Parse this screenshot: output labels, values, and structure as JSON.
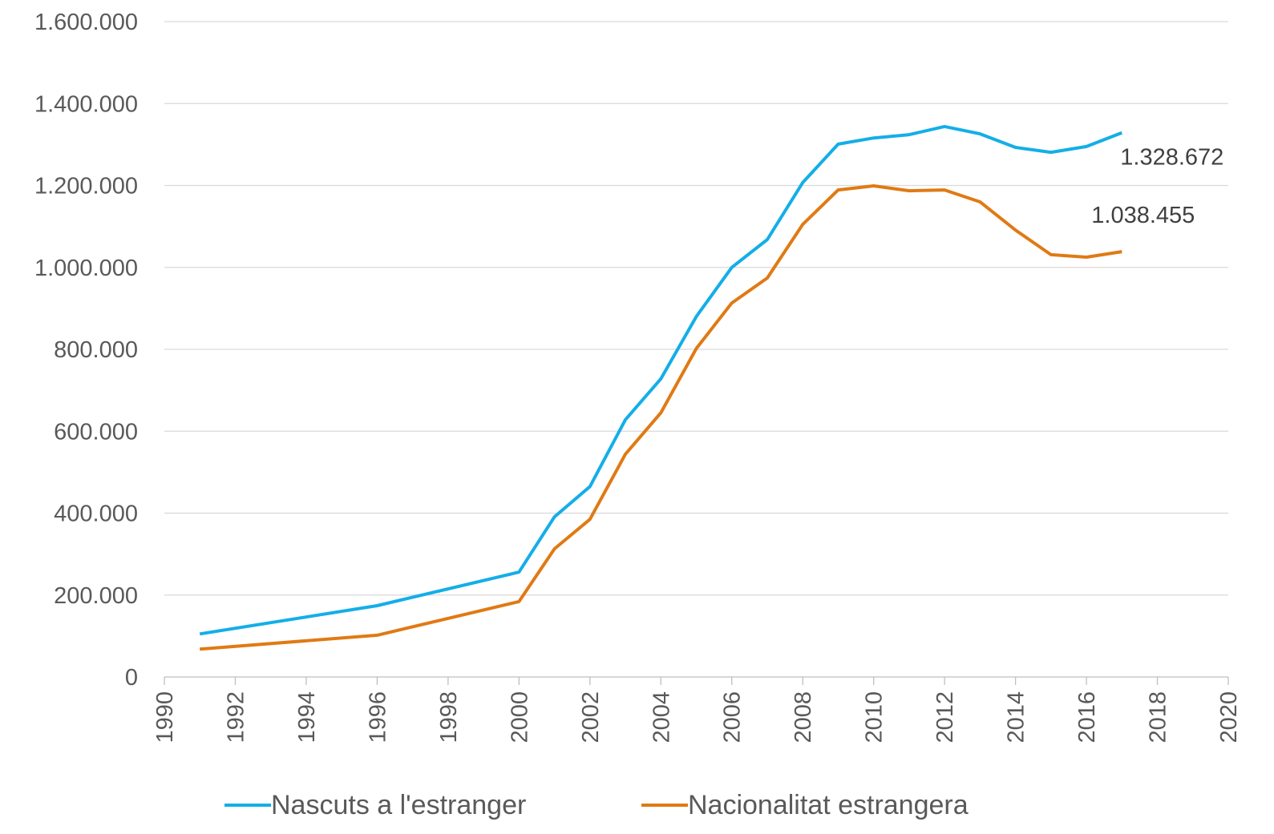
{
  "chart_data": {
    "type": "line",
    "x": [
      1991,
      1996,
      2000,
      2001,
      2002,
      2003,
      2004,
      2005,
      2006,
      2007,
      2008,
      2009,
      2010,
      2011,
      2012,
      2013,
      2014,
      2015,
      2016,
      2017
    ],
    "series": [
      {
        "name": "Nascuts a l'estranger",
        "color": "#14aee8",
        "values": [
          105000,
          174000,
          256000,
          391000,
          465000,
          628000,
          728000,
          880000,
          1000000,
          1068000,
          1207000,
          1301000,
          1316000,
          1324000,
          1344000,
          1326000,
          1293000,
          1281000,
          1295000,
          1328672
        ],
        "value_labels": [
          null,
          null,
          null,
          null,
          null,
          null,
          null,
          null,
          null,
          null,
          null,
          null,
          null,
          null,
          null,
          null,
          null,
          null,
          null,
          "1.328.672"
        ]
      },
      {
        "name": "Nacionalitat estrangera",
        "color": "#e07a14",
        "values": [
          68000,
          102000,
          184000,
          313000,
          385000,
          544000,
          645000,
          802000,
          913000,
          974000,
          1105000,
          1189000,
          1199000,
          1187000,
          1189000,
          1160000,
          1091000,
          1031000,
          1025000,
          1038455
        ],
        "value_labels": [
          null,
          null,
          null,
          null,
          null,
          null,
          null,
          null,
          null,
          null,
          null,
          null,
          null,
          null,
          null,
          null,
          null,
          null,
          null,
          "1.038.455"
        ]
      }
    ],
    "xlim": [
      1990,
      2020
    ],
    "xticks": [
      1990,
      1992,
      1994,
      1996,
      1998,
      2000,
      2002,
      2004,
      2006,
      2008,
      2010,
      2012,
      2014,
      2016,
      2018,
      2020
    ],
    "ylim": [
      0,
      1600000
    ],
    "yticks": [
      0,
      {
        "value": 200000,
        "label": "200.000"
      },
      {
        "value": 400000,
        "label": "400.000"
      },
      {
        "value": 600000,
        "label": "600.000"
      },
      {
        "value": 800000,
        "label": "800.000"
      },
      {
        "value": 1000000,
        "label": "1.000.000"
      },
      {
        "value": 1200000,
        "label": "1.200.000"
      },
      {
        "value": 1400000,
        "label": "1.400.000"
      },
      {
        "value": 1600000,
        "label": "1.600.000"
      }
    ],
    "grid": true,
    "legend": "bottom"
  }
}
